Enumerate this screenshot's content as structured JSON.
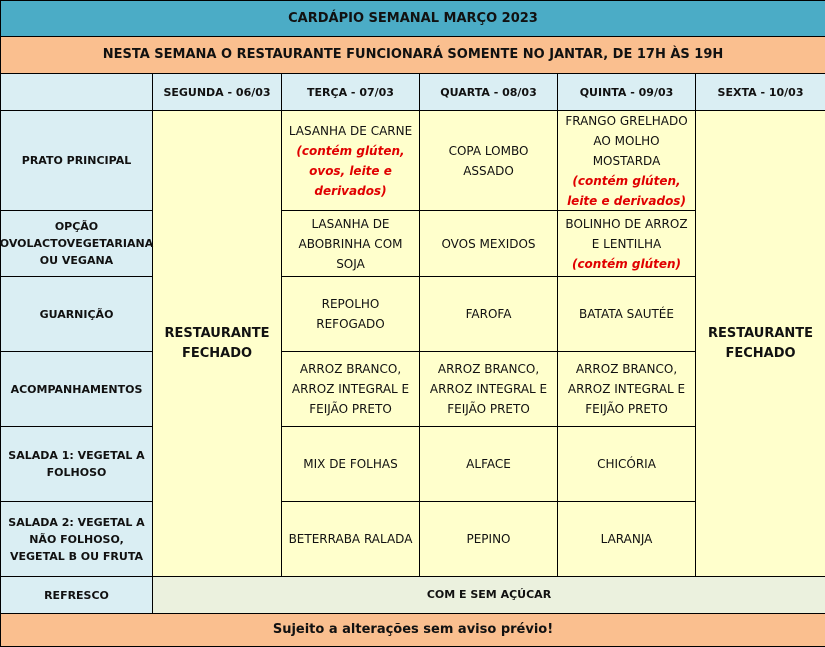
{
  "title": "CARDÁPIO SEMANAL MARÇO 2023",
  "notice": "NESTA SEMANA O RESTAURANTE FUNCIONARÁ SOMENTE NO JANTAR, DE 17H ÀS 19H",
  "days": [
    "SEGUNDA - 06/03",
    "TERÇA - 07/03",
    "QUARTA - 08/03",
    "QUINTA - 09/03",
    "SEXTA - 10/03"
  ],
  "closed_label": "RESTAURANTE FECHADO",
  "rows": [
    {
      "label": "PRATO PRINCIPAL",
      "cells": [
        {
          "text": "LASANHA DE CARNE",
          "note": "(contém glúten, ovos, leite e derivados)"
        },
        {
          "text": "COPA LOMBO ASSADO"
        },
        {
          "text": "FRANGO GRELHADO AO MOLHO MOSTARDA",
          "note": "(contém glúten, leite e derivados)"
        }
      ]
    },
    {
      "label": "OPÇÃO OVOLACTOVEGETARIANA OU VEGANA",
      "cells": [
        {
          "text": "LASANHA DE ABOBRINHA COM SOJA"
        },
        {
          "text": "OVOS MEXIDOS"
        },
        {
          "text": "BOLINHO DE ARROZ E LENTILHA",
          "note": "(contém glúten)"
        }
      ]
    },
    {
      "label": "GUARNIÇÃO",
      "cells": [
        {
          "text": "REPOLHO REFOGADO"
        },
        {
          "text": "FAROFA"
        },
        {
          "text": "BATATA SAUTÉE"
        }
      ]
    },
    {
      "label": "ACOMPANHAMENTOS",
      "cells": [
        {
          "text": "ARROZ BRANCO, ARROZ INTEGRAL E FEIJÃO PRETO"
        },
        {
          "text": "ARROZ BRANCO, ARROZ INTEGRAL E FEIJÃO PRETO"
        },
        {
          "text": "ARROZ BRANCO, ARROZ INTEGRAL E FEIJÃO PRETO"
        }
      ]
    },
    {
      "label": "SALADA 1: VEGETAL A FOLHOSO",
      "cells": [
        {
          "text": "MIX DE FOLHAS"
        },
        {
          "text": "ALFACE"
        },
        {
          "text": "CHICÓRIA"
        }
      ]
    },
    {
      "label": "SALADA 2: VEGETAL A NÃO FOLHOSO,   VEGETAL B OU FRUTA",
      "cells": [
        {
          "text": "BETERRABA RALADA"
        },
        {
          "text": "PEPINO"
        },
        {
          "text": "LARANJA"
        }
      ]
    }
  ],
  "refresco": {
    "label": "REFRESCO",
    "value": "COM E SEM AÇÚCAR"
  },
  "footer": "Sujeito a alterações sem aviso prévio!",
  "colors": {
    "title_bg": "#4bacc6",
    "notice_bg": "#fabf8f",
    "label_bg": "#daeef3",
    "cell_bg": "#ffffcc",
    "refresco_bg": "#ebf1de",
    "note": "#e00000"
  }
}
